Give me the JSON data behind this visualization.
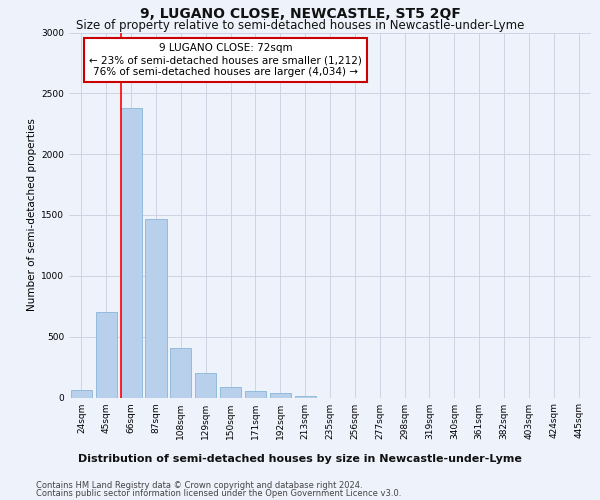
{
  "title": "9, LUGANO CLOSE, NEWCASTLE, ST5 2QF",
  "subtitle": "Size of property relative to semi-detached houses in Newcastle-under-Lyme",
  "xlabel_dist": "Distribution of semi-detached houses by size in Newcastle-under-Lyme",
  "ylabel": "Number of semi-detached properties",
  "categories": [
    "24sqm",
    "45sqm",
    "66sqm",
    "87sqm",
    "108sqm",
    "129sqm",
    "150sqm",
    "171sqm",
    "192sqm",
    "213sqm",
    "235sqm",
    "256sqm",
    "277sqm",
    "298sqm",
    "319sqm",
    "340sqm",
    "361sqm",
    "382sqm",
    "403sqm",
    "424sqm",
    "445sqm"
  ],
  "values": [
    65,
    700,
    2380,
    1470,
    410,
    205,
    85,
    55,
    35,
    10,
    0,
    0,
    0,
    0,
    0,
    0,
    0,
    0,
    0,
    0,
    0
  ],
  "bar_color": "#b8d0eb",
  "bar_edge_color": "#7aadd4",
  "red_line_bar_index": 2,
  "annotation_title": "9 LUGANO CLOSE: 72sqm",
  "annotation_line1": "← 23% of semi-detached houses are smaller (1,212)",
  "annotation_line2": "76% of semi-detached houses are larger (4,034) →",
  "ylim": [
    0,
    3000
  ],
  "yticks": [
    0,
    500,
    1000,
    1500,
    2000,
    2500,
    3000
  ],
  "footer_line1": "Contains HM Land Registry data © Crown copyright and database right 2024.",
  "footer_line2": "Contains public sector information licensed under the Open Government Licence v3.0.",
  "bg_color": "#eef2fb",
  "plot_bg_color": "#eef2fb",
  "grid_color": "#c8cfe0",
  "annotation_box_color": "#ffffff",
  "annotation_box_edge": "#cc0000",
  "title_fontsize": 10,
  "subtitle_fontsize": 8.5,
  "ylabel_fontsize": 7.5,
  "xlabel_dist_fontsize": 8,
  "tick_fontsize": 6.5,
  "annotation_fontsize": 7.5,
  "footer_fontsize": 6
}
